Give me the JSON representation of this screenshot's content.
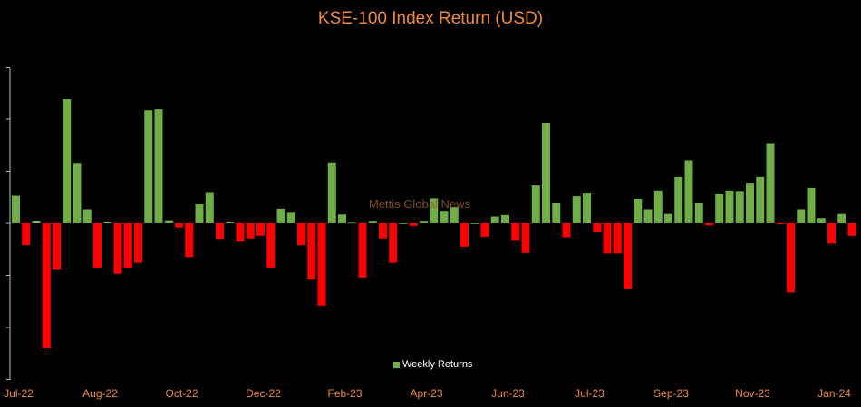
{
  "colors": {
    "background": "#000000",
    "title": "#f0883a",
    "axis_text": "#f0883a",
    "positive": "#6fad46",
    "negative": "#ff0000",
    "axis_line": "#bfbfbf",
    "legend_text": "#ffffff",
    "watermark": "#9c5a2a"
  },
  "watermark": "Mettis Global News",
  "chart_data": {
    "type": "bar",
    "title": "KSE-100 Index Return (USD)",
    "xlabel": "",
    "ylabel": "",
    "ylim": [
      -3,
      3
    ],
    "grid": false,
    "legend": {
      "label": "Weekly Returns",
      "position": "bottom-center"
    },
    "x_tick_labels": [
      "Jul-22",
      "Aug-22",
      "Oct-22",
      "Dec-22",
      "Feb-23",
      "Apr-23",
      "Jun-23",
      "Jul-23",
      "Sep-23",
      "Nov-23",
      "Jan-24"
    ],
    "x_tick_positions": [
      0,
      8,
      16,
      24,
      32,
      40,
      48,
      56,
      64,
      72,
      80
    ],
    "series": [
      {
        "name": "Weekly Returns",
        "values": [
          0.53,
          -0.42,
          0.05,
          -2.4,
          -0.88,
          2.39,
          1.16,
          0.27,
          -0.85,
          0.02,
          -0.97,
          -0.85,
          -0.76,
          2.17,
          2.19,
          0.06,
          -0.08,
          -0.65,
          0.38,
          0.6,
          -0.3,
          0.02,
          -0.35,
          -0.29,
          -0.24,
          -0.85,
          0.28,
          0.22,
          -0.42,
          -1.08,
          -1.58,
          1.17,
          0.17,
          0.01,
          -1.04,
          0.05,
          -0.29,
          -0.76,
          0.0,
          -0.05,
          0.05,
          0.48,
          0.24,
          0.31,
          -0.45,
          0.0,
          -0.26,
          0.13,
          0.16,
          -0.32,
          -0.57,
          0.73,
          1.93,
          0.4,
          -0.27,
          0.52,
          0.59,
          -0.16,
          -0.58,
          -0.58,
          -1.26,
          0.47,
          0.27,
          0.63,
          0.18,
          0.89,
          1.21,
          0.4,
          -0.04,
          0.57,
          0.63,
          0.62,
          0.78,
          0.89,
          1.54,
          -0.02,
          -1.33,
          0.27,
          0.68,
          0.1,
          -0.39,
          0.18,
          -0.24
        ]
      }
    ]
  }
}
